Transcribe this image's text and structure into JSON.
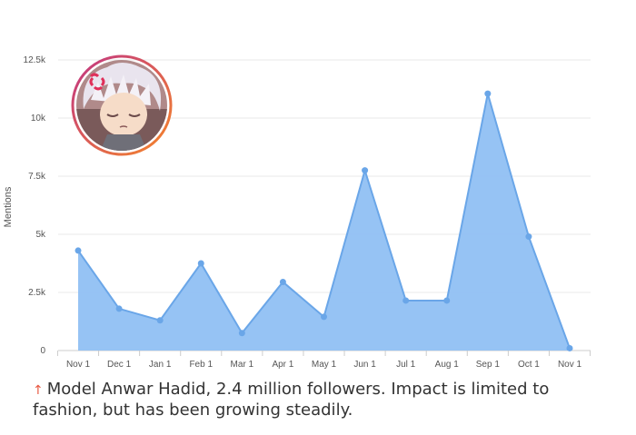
{
  "chart_data": {
    "type": "area",
    "categories": [
      "Nov 1",
      "Dec 1",
      "Jan 1",
      "Feb 1",
      "Mar 1",
      "Apr 1",
      "May 1",
      "Jun 1",
      "Jul 1",
      "Aug 1",
      "Sep 1",
      "Oct 1",
      "Nov 1"
    ],
    "values": [
      4300,
      1800,
      1300,
      3750,
      750,
      2950,
      1450,
      7750,
      2150,
      2150,
      11050,
      4900,
      100
    ],
    "ylabel": "Mentions",
    "ylim": [
      0,
      12500
    ],
    "yticks": [
      0,
      2500,
      5000,
      7500,
      10000,
      12500
    ],
    "ytick_labels": [
      "0",
      "2.5k",
      "5k",
      "7.5k",
      "10k",
      "12.5k"
    ],
    "grid": true,
    "colors": {
      "fill": "#90c0f3",
      "line": "#6aa6e8",
      "point": "#6aa6e8"
    }
  },
  "caption": {
    "arrow": "↑",
    "text": "Model Anwar Hadid, 2.4 million followers. Impact is limited to fashion, but has been growing steadily."
  },
  "avatar": {
    "icon": "anime-avatar-icon",
    "ring_colors": [
      "#c13584",
      "#f58529"
    ]
  }
}
